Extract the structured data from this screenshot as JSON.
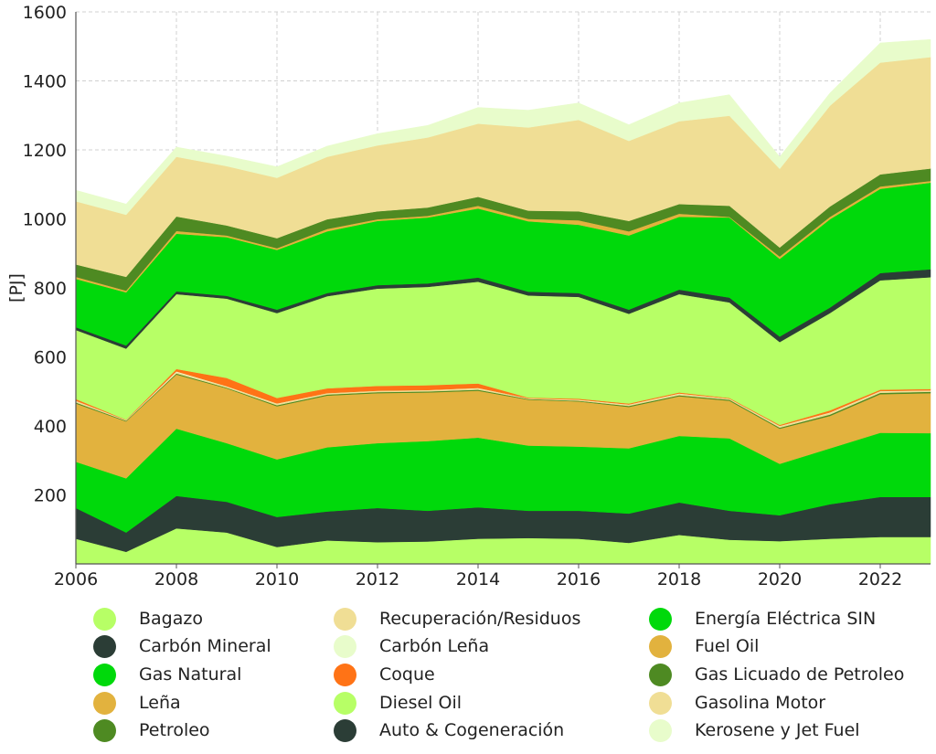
{
  "chart_data": {
    "type": "area",
    "stacked": true,
    "title": "",
    "xlabel": "",
    "ylabel": "[PJ]",
    "ylim": [
      0,
      1600
    ],
    "xlim": [
      2006,
      2023
    ],
    "yticks": [
      200,
      400,
      600,
      800,
      1000,
      1200,
      1400,
      1600
    ],
    "xticks": [
      2006,
      2008,
      2010,
      2012,
      2014,
      2016,
      2018,
      2020,
      2022
    ],
    "grid": true,
    "legend_position": "bottom",
    "x": [
      2006,
      2007,
      2008,
      2009,
      2010,
      2011,
      2012,
      2013,
      2014,
      2015,
      2016,
      2017,
      2018,
      2019,
      2020,
      2021,
      2022,
      2023
    ],
    "series": [
      {
        "name": "Bagazo",
        "color": "#b7ff66",
        "values": [
          73,
          35,
          103,
          91,
          49,
          68,
          63,
          65,
          73,
          75,
          73,
          61,
          84,
          70,
          66,
          73,
          78,
          78
        ]
      },
      {
        "name": "Carbón Mineral",
        "color": "#2b3d36",
        "values": [
          89,
          56,
          94,
          89,
          87,
          84,
          99,
          89,
          91,
          79,
          81,
          85,
          94,
          84,
          75,
          100,
          116,
          116
        ]
      },
      {
        "name": "Gas Natural",
        "color": "#00d90b",
        "values": [
          134,
          157,
          195,
          170,
          167,
          186,
          188,
          202,
          202,
          189,
          186,
          189,
          193,
          210,
          149,
          162,
          186,
          185
        ]
      },
      {
        "name": "Leña",
        "color": "#e2b23e",
        "values": [
          169,
          165,
          157,
          159,
          154,
          150,
          145,
          141,
          136,
          133,
          131,
          120,
          115,
          109,
          102,
          94,
          112,
          116
        ]
      },
      {
        "name": "Petroleo",
        "color": "#4e8a22",
        "values": [
          3,
          2,
          3,
          2,
          3,
          3,
          3,
          3,
          3,
          2,
          2,
          3,
          3,
          3,
          3,
          4,
          4,
          4
        ]
      },
      {
        "name": "Recuperación/Residuos",
        "color": "#f0de95",
        "values": [
          4,
          2,
          4,
          3,
          4,
          4,
          4,
          4,
          4,
          2,
          2,
          3,
          4,
          3,
          4,
          5,
          4,
          3
        ]
      },
      {
        "name": "Carbón Leña",
        "color": "#e8fccb",
        "values": [
          1,
          0,
          2,
          1,
          1,
          0,
          0,
          0,
          1,
          0,
          1,
          1,
          1,
          0,
          1,
          1,
          1,
          1
        ]
      },
      {
        "name": "Coque",
        "color": "#ff7316",
        "values": [
          5,
          1,
          7,
          24,
          16,
          14,
          14,
          14,
          13,
          2,
          3,
          3,
          3,
          2,
          3,
          6,
          4,
          4
        ]
      },
      {
        "name": "Diesel Oil",
        "color": "#b7ff66",
        "values": [
          200,
          206,
          217,
          230,
          246,
          267,
          282,
          285,
          295,
          296,
          295,
          260,
          285,
          277,
          240,
          282,
          317,
          324
        ]
      },
      {
        "name": "Auto & Cogeneración",
        "color": "#2b3d36",
        "values": [
          8,
          9,
          8,
          8,
          10,
          9,
          10,
          10,
          12,
          11,
          11,
          12,
          13,
          14,
          16,
          16,
          21,
          23
        ]
      },
      {
        "name": "Energía Eléctrica SIN",
        "color": "#00d90b",
        "values": [
          140,
          154,
          167,
          170,
          173,
          179,
          186,
          191,
          200,
          204,
          198,
          215,
          211,
          232,
          225,
          256,
          244,
          251
        ]
      },
      {
        "name": "Fuel Oil",
        "color": "#e2b23e",
        "values": [
          6,
          5,
          8,
          5,
          5,
          7,
          5,
          5,
          8,
          7,
          13,
          12,
          9,
          2,
          7,
          7,
          7,
          5
        ]
      },
      {
        "name": "Gas Licuado de Petroleo",
        "color": "#4e8a22",
        "values": [
          36,
          40,
          42,
          29,
          29,
          28,
          23,
          24,
          26,
          24,
          26,
          30,
          28,
          32,
          26,
          30,
          35,
          36
        ]
      },
      {
        "name": "Gasolina Motor",
        "color": "#f0de95",
        "values": [
          183,
          180,
          173,
          172,
          175,
          181,
          191,
          203,
          212,
          241,
          265,
          232,
          240,
          261,
          228,
          292,
          324,
          323
        ]
      },
      {
        "name": "Kerosene y Jet Fuel",
        "color": "#e8fccb",
        "values": [
          32,
          31,
          28,
          29,
          32,
          31,
          34,
          35,
          47,
          50,
          49,
          47,
          53,
          61,
          35,
          37,
          57,
          51
        ]
      }
    ]
  }
}
